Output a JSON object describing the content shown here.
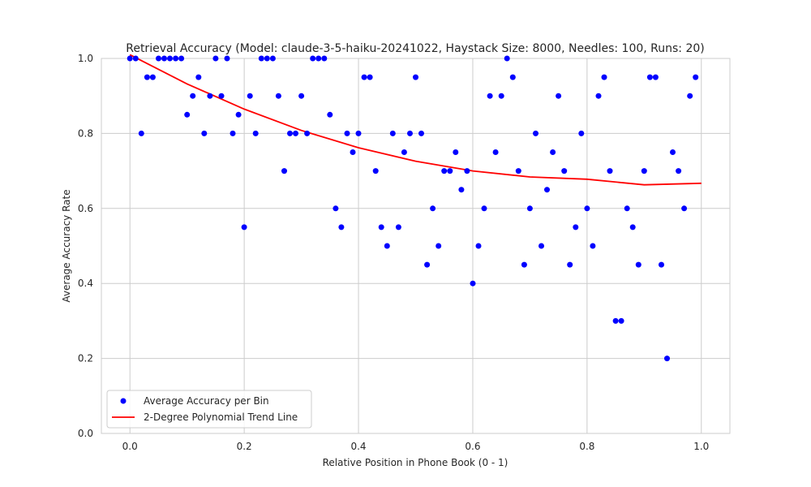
{
  "chart_data": {
    "type": "scatter",
    "title": "Retrieval Accuracy (Model: claude-3-5-haiku-20241022, Haystack Size: 8000, Needles: 100, Runs: 20)",
    "xlabel": "Relative Position in Phone Book (0 - 1)",
    "ylabel": "Average Accuracy Rate",
    "xlim": [
      -0.05,
      1.05
    ],
    "ylim": [
      0.0,
      1.0
    ],
    "xticks": [
      "0.0",
      "0.2",
      "0.4",
      "0.6",
      "0.8",
      "1.0"
    ],
    "yticks": [
      "0.0",
      "0.2",
      "0.4",
      "0.6",
      "0.8",
      "1.0"
    ],
    "grid": true,
    "legend_position": "lower-left",
    "series": [
      {
        "name": "Average Accuracy per Bin",
        "kind": "scatter",
        "color": "#0000ff",
        "x": [
          0.0,
          0.01,
          0.02,
          0.03,
          0.04,
          0.05,
          0.06,
          0.07,
          0.08,
          0.09,
          0.1,
          0.11,
          0.12,
          0.13,
          0.14,
          0.15,
          0.16,
          0.17,
          0.18,
          0.19,
          0.2,
          0.21,
          0.22,
          0.23,
          0.24,
          0.25,
          0.26,
          0.27,
          0.28,
          0.29,
          0.3,
          0.31,
          0.32,
          0.33,
          0.34,
          0.35,
          0.36,
          0.37,
          0.38,
          0.39,
          0.4,
          0.41,
          0.42,
          0.43,
          0.44,
          0.45,
          0.46,
          0.47,
          0.48,
          0.49,
          0.5,
          0.51,
          0.52,
          0.53,
          0.54,
          0.55,
          0.56,
          0.57,
          0.58,
          0.59,
          0.6,
          0.61,
          0.62,
          0.63,
          0.64,
          0.65,
          0.66,
          0.67,
          0.68,
          0.69,
          0.7,
          0.71,
          0.72,
          0.73,
          0.74,
          0.75,
          0.76,
          0.77,
          0.78,
          0.79,
          0.8,
          0.81,
          0.82,
          0.83,
          0.84,
          0.85,
          0.86,
          0.87,
          0.88,
          0.89,
          0.9,
          0.91,
          0.92,
          0.93,
          0.94,
          0.95,
          0.96,
          0.97,
          0.98,
          0.99
        ],
        "y": [
          1.0,
          1.0,
          0.8,
          0.95,
          0.95,
          1.0,
          1.0,
          1.0,
          1.0,
          1.0,
          0.85,
          0.9,
          0.95,
          0.8,
          0.9,
          1.0,
          0.9,
          1.0,
          0.8,
          0.85,
          0.55,
          0.9,
          0.8,
          1.0,
          1.0,
          1.0,
          0.9,
          0.7,
          0.8,
          0.8,
          0.9,
          0.8,
          1.0,
          1.0,
          1.0,
          0.85,
          0.6,
          0.55,
          0.8,
          0.75,
          0.8,
          0.95,
          0.95,
          0.7,
          0.55,
          0.5,
          0.8,
          0.55,
          0.75,
          0.8,
          0.95,
          0.8,
          0.45,
          0.6,
          0.5,
          0.7,
          0.7,
          0.75,
          0.65,
          0.7,
          0.4,
          0.5,
          0.6,
          0.9,
          0.75,
          0.9,
          1.0,
          0.95,
          0.7,
          0.45,
          0.6,
          0.8,
          0.5,
          0.65,
          0.75,
          0.9,
          0.7,
          0.45,
          0.55,
          0.8,
          0.6,
          0.5,
          0.9,
          0.95,
          0.7,
          0.3,
          0.3,
          0.6,
          0.55,
          0.45,
          0.7,
          0.95,
          0.95,
          0.45,
          0.2,
          0.75,
          0.7,
          0.6,
          0.9,
          0.95
        ]
      },
      {
        "name": "2-Degree Polynomial Trend Line",
        "kind": "line",
        "color": "#ff0000",
        "x": [
          0.0,
          0.1,
          0.2,
          0.3,
          0.4,
          0.5,
          0.6,
          0.7,
          0.8,
          0.9,
          1.0
        ],
        "y": [
          1.01,
          0.932,
          0.865,
          0.808,
          0.762,
          0.726,
          0.7,
          0.684,
          0.678,
          0.663,
          0.667
        ]
      }
    ]
  }
}
